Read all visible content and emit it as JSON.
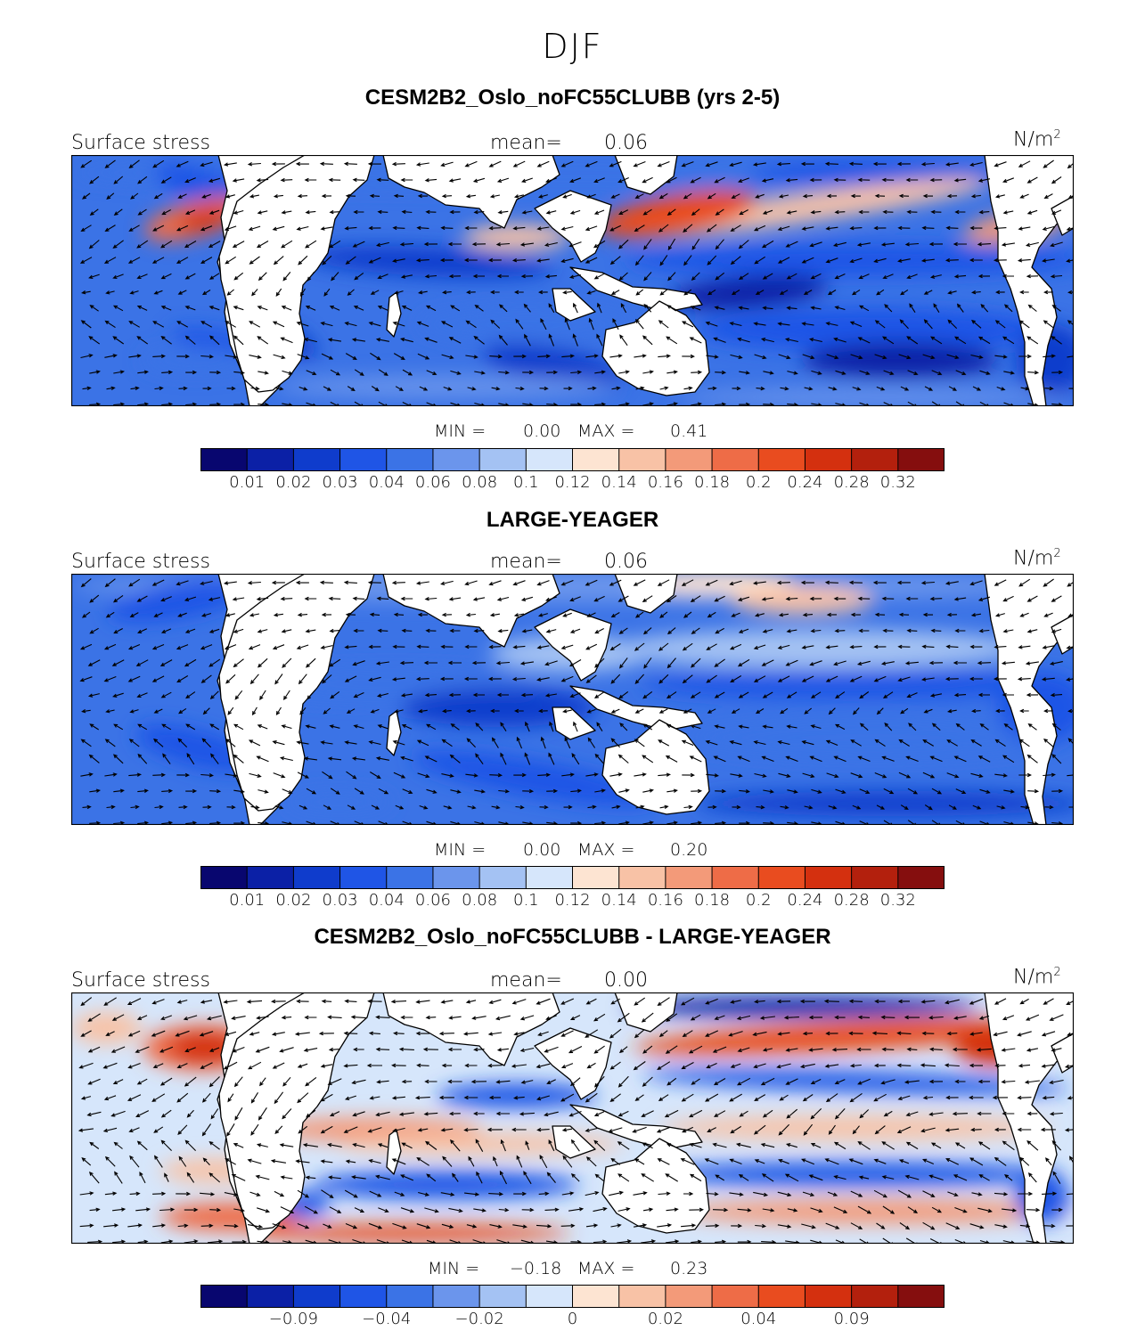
{
  "season": "DJF",
  "panels": [
    {
      "title": "CESM2B2_Oslo_noFC55CLUBB (yrs 2-5)",
      "variable": "Surface stress",
      "mean_label": "mean=",
      "mean_value": "0.06",
      "units_base": "N/m",
      "units_exp": "2",
      "min_label": "MIN =",
      "min_value": "0.00",
      "max_label": "MAX =",
      "max_value": "0.41",
      "colorbar_ticks": [
        "0.01",
        "0.02",
        "0.03",
        "0.04",
        "0.06",
        "0.08",
        "0.1",
        "0.12",
        "0.14",
        "0.16",
        "0.18",
        "0.2",
        "0.24",
        "0.28",
        "0.32"
      ]
    },
    {
      "title": "LARGE-YEAGER",
      "variable": "Surface stress",
      "mean_label": "mean=",
      "mean_value": "0.06",
      "units_base": "N/m",
      "units_exp": "2",
      "min_label": "MIN =",
      "min_value": "0.00",
      "max_label": "MAX =",
      "max_value": "0.20",
      "colorbar_ticks": [
        "0.01",
        "0.02",
        "0.03",
        "0.04",
        "0.06",
        "0.08",
        "0.1",
        "0.12",
        "0.14",
        "0.16",
        "0.18",
        "0.2",
        "0.24",
        "0.28",
        "0.32"
      ]
    },
    {
      "title": "CESM2B2_Oslo_noFC55CLUBB - LARGE-YEAGER",
      "variable": "Surface stress",
      "mean_label": "mean=",
      "mean_value": "0.00",
      "units_base": "N/m",
      "units_exp": "2",
      "min_label": "MIN =",
      "min_value": "−0.18",
      "max_label": "MAX =",
      "max_value": "0.23",
      "colorbar_ticks": [
        "−0.09",
        "−0.04",
        "−0.02",
        "0",
        "0.02",
        "0.04",
        "0.09"
      ]
    }
  ],
  "colors": {
    "sequential": [
      "#08066f",
      "#0b20a6",
      "#0f3ccc",
      "#1f55e6",
      "#3b73e6",
      "#6b95ec",
      "#a4c2f3",
      "#d6e6fb",
      "#fde4d2",
      "#f8c2a6",
      "#f39a79",
      "#ee6c47",
      "#e94c1f",
      "#d4300f",
      "#b3200d",
      "#850e0e"
    ],
    "ocean_low": "#1a3fc9",
    "ocean_mid": "#6e98ee",
    "ocean_high": "#ee6c47",
    "land": "#ffffff"
  }
}
